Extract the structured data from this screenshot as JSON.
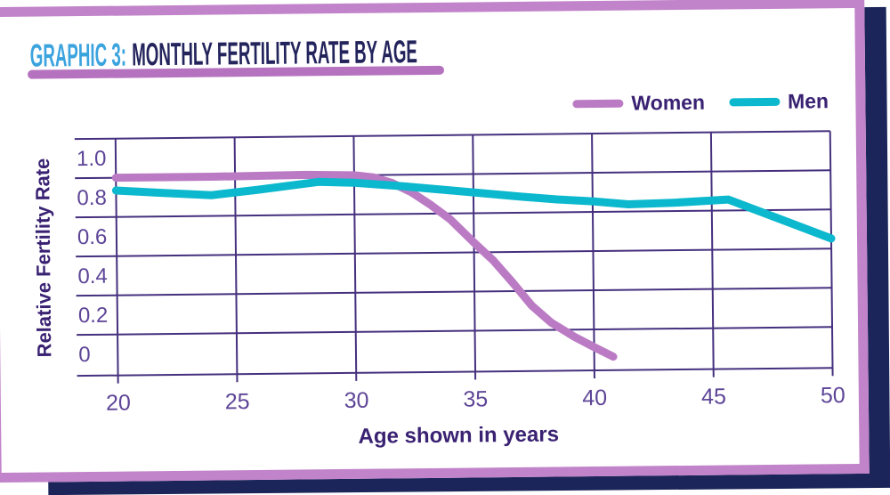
{
  "title": {
    "prefix": "GRAPHIC 3:",
    "main": "MONTHLY FERTILITY RATE BY AGE"
  },
  "legend": {
    "items": [
      {
        "label": "Women",
        "color": "#BB7BC4"
      },
      {
        "label": "Men",
        "color": "#0BB8CD"
      }
    ]
  },
  "colors": {
    "title_prefix": "#3BA3DE",
    "title_main": "#23245C",
    "title_underline": "#B573BF",
    "card_border": "#C183C9",
    "backdrop_navy": "#1B2559",
    "grid": "#45307E",
    "tick_label": "#5D4597",
    "axis_title": "#3A2273",
    "legend_text": "#3A2273"
  },
  "chart_data": {
    "type": "line",
    "title": "Monthly Fertility Rate by Age",
    "xlabel": "Age shown in years",
    "ylabel": "Relative Fertility Rate",
    "xlim": [
      20,
      50
    ],
    "ylim": [
      -0.109,
      1.1
    ],
    "x_ticks": [
      20,
      25,
      30,
      35,
      40,
      45,
      50
    ],
    "y_ticks": [
      "1.0",
      "0.8",
      "0.6",
      "0.4",
      "0.2",
      "0"
    ],
    "y_tick_values": [
      1.0,
      0.8,
      0.6,
      0.4,
      0.2,
      0
    ],
    "y_grid_values": [
      1.1,
      0.9,
      0.7,
      0.5,
      0.3,
      0.1,
      -0.109
    ],
    "grid": true,
    "legend_position": "top-right",
    "series": [
      {
        "name": "Women",
        "color": "#BB7BC4",
        "points": [
          [
            20,
            0.9
          ],
          [
            24,
            0.9
          ],
          [
            28,
            0.905
          ],
          [
            30,
            0.9
          ],
          [
            30.8,
            0.888
          ],
          [
            31.6,
            0.858
          ],
          [
            32.4,
            0.81
          ],
          [
            33.2,
            0.745
          ],
          [
            34,
            0.672
          ],
          [
            35,
            0.55
          ],
          [
            35.8,
            0.458
          ],
          [
            36.6,
            0.345
          ],
          [
            37.4,
            0.225
          ],
          [
            38.2,
            0.138
          ],
          [
            39.2,
            0.062
          ],
          [
            40,
            0.01
          ],
          [
            40.8,
            -0.04
          ]
        ]
      },
      {
        "name": "Men",
        "color": "#0BB8CD",
        "points": [
          [
            20,
            0.835
          ],
          [
            22,
            0.82
          ],
          [
            24,
            0.806
          ],
          [
            26,
            0.832
          ],
          [
            28.5,
            0.868
          ],
          [
            30,
            0.862
          ],
          [
            32,
            0.842
          ],
          [
            34,
            0.818
          ],
          [
            35,
            0.806
          ],
          [
            37,
            0.782
          ],
          [
            38.5,
            0.766
          ],
          [
            40,
            0.754
          ],
          [
            41.5,
            0.737
          ],
          [
            43.5,
            0.743
          ],
          [
            45.7,
            0.756
          ],
          [
            50,
            0.552
          ]
        ]
      }
    ]
  }
}
